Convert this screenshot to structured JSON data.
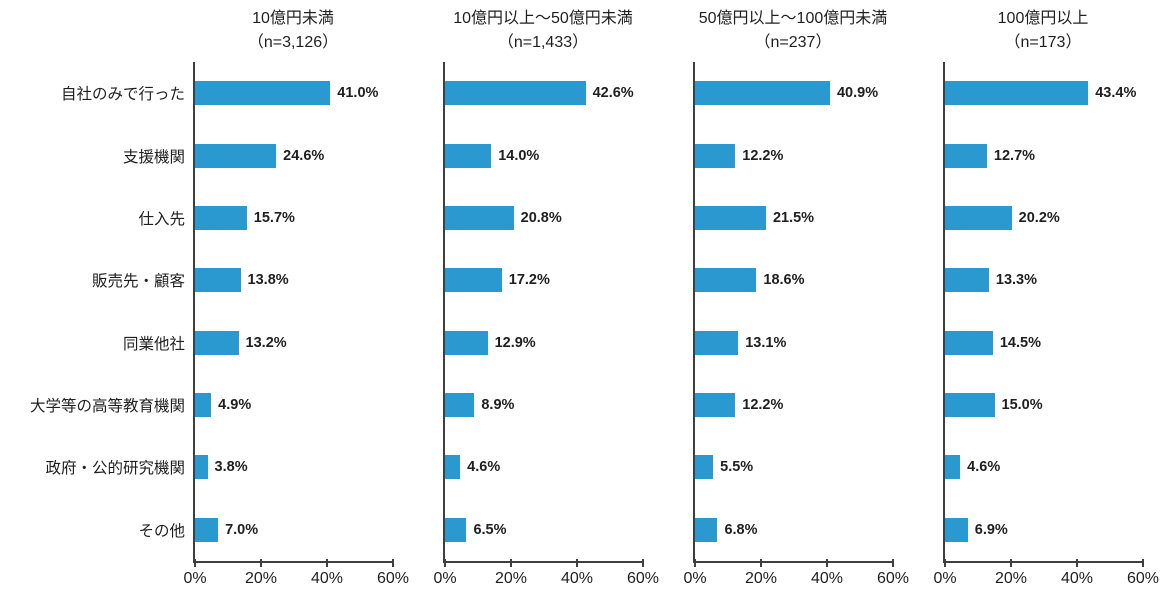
{
  "chart_data": {
    "type": "bar",
    "orientation": "horizontal",
    "title": "",
    "categories": [
      "自社のみで行った",
      "支援機関",
      "仕入先",
      "販売先・顧客",
      "同業他社",
      "大学等の高等教育機関",
      "政府・公的研究機関",
      "その他"
    ],
    "series": [
      {
        "name": "10億円未満",
        "n_label": "（n=3,126）",
        "values": [
          41.0,
          24.6,
          15.7,
          13.8,
          13.2,
          4.9,
          3.8,
          7.0
        ]
      },
      {
        "name": "10億円以上～50億円未満",
        "n_label": "（n=1,433）",
        "values": [
          42.6,
          14.0,
          20.8,
          17.2,
          12.9,
          8.9,
          4.6,
          6.5
        ]
      },
      {
        "name": "50億円以上～100億円未満",
        "n_label": "（n=237）",
        "values": [
          40.9,
          12.2,
          21.5,
          18.6,
          13.1,
          12.2,
          5.5,
          6.8
        ]
      },
      {
        "name": "100億円以上",
        "n_label": "（n=173）",
        "values": [
          43.4,
          12.7,
          20.2,
          13.3,
          14.5,
          15.0,
          4.6,
          6.9
        ]
      }
    ],
    "value_label_suffix": "%",
    "value_decimals": 1,
    "xlim": [
      0,
      60
    ],
    "xticks": [
      0,
      20,
      40,
      60
    ],
    "xtick_labels": [
      "0%",
      "20%",
      "40%",
      "60%"
    ],
    "grid": false,
    "legend": false,
    "bar_color": "#2999D0",
    "axis_color": "#3f3f3f",
    "text_color": "#1f1f1f"
  }
}
